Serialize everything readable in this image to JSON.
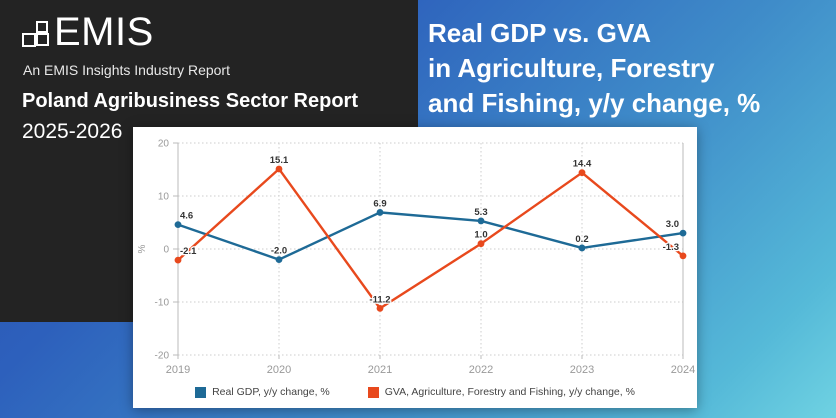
{
  "brand": {
    "logo_text": "EMIS",
    "tagline": "An EMIS Insights Industry Report",
    "report_title": "Poland Agribusiness Sector Report",
    "report_years": "2025-2026"
  },
  "title": {
    "line1": "Real GDP vs. GVA",
    "line2": "in Agriculture, Forestry",
    "line3": "and Fishing, y/y change, %"
  },
  "colors": {
    "panel": "#232323",
    "background_top": "#2a50ae",
    "background_bottom": "#6fd2e2",
    "gdp_line": "#1e6a96",
    "gva_line": "#e8491d",
    "grid": "#cccccc",
    "axis_text": "#999999",
    "data_label": "#333333"
  },
  "chart_data": {
    "type": "line",
    "categories": [
      "2019",
      "2020",
      "2021",
      "2022",
      "2023",
      "2024"
    ],
    "series": [
      {
        "name": "Real GDP, y/y change, %",
        "color": "#1e6a96",
        "marker": "circle",
        "values": [
          4.6,
          -2.0,
          6.9,
          5.3,
          0.2,
          3.0
        ],
        "labels": [
          "4.6",
          "-2.0",
          "6.9",
          "5.3",
          "0.2",
          "3.0"
        ]
      },
      {
        "name": "GVA, Agriculture, Forestry and Fishing, y/y change, %",
        "color": "#e8491d",
        "marker": "circle",
        "values": [
          -2.1,
          15.1,
          -11.2,
          1.0,
          14.4,
          -1.3
        ],
        "labels": [
          "-2.1",
          "15.1",
          "-11.2",
          "1.0",
          "14.4",
          "-1.3"
        ]
      }
    ],
    "title": "",
    "xlabel": "",
    "ylabel": "%",
    "ylim": [
      -20,
      20
    ],
    "yticks": [
      20,
      10,
      0,
      -10,
      -20
    ],
    "grid": "dotted",
    "legend_position": "bottom"
  }
}
